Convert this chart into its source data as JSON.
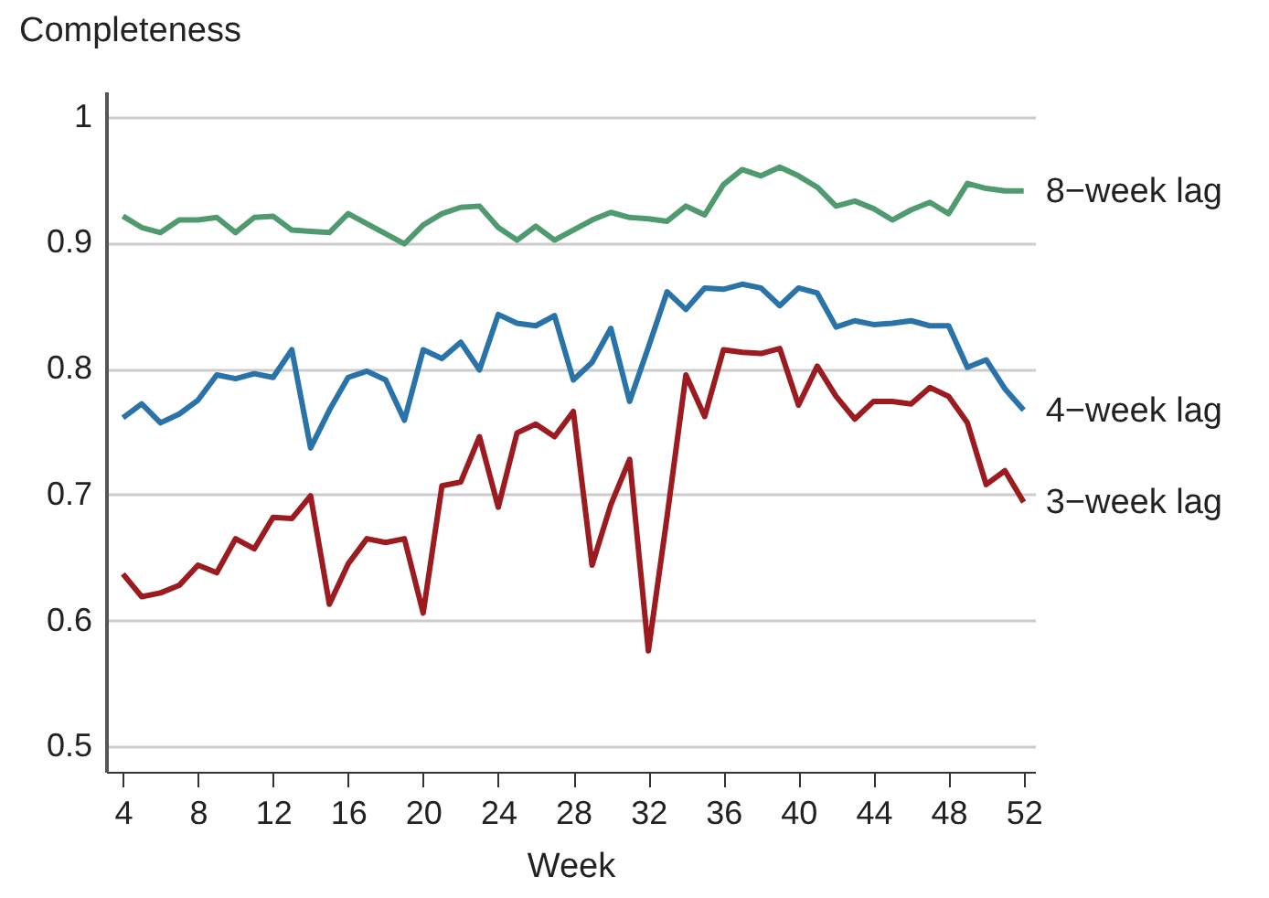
{
  "chart_data": {
    "type": "line",
    "xlabel": "Week",
    "ylabel": "Completeness",
    "x": [
      4,
      5,
      6,
      7,
      8,
      9,
      10,
      11,
      12,
      13,
      14,
      15,
      16,
      17,
      18,
      19,
      20,
      21,
      22,
      23,
      24,
      25,
      26,
      27,
      28,
      29,
      30,
      31,
      32,
      33,
      34,
      35,
      36,
      37,
      38,
      39,
      40,
      41,
      42,
      43,
      44,
      45,
      46,
      47,
      48,
      49,
      50,
      51,
      52
    ],
    "series": [
      {
        "name": "8−week lag",
        "color": "#4f9a6e",
        "values": [
          0.921,
          0.912,
          0.908,
          0.918,
          0.918,
          0.92,
          0.908,
          0.92,
          0.921,
          0.91,
          0.909,
          0.908,
          0.923,
          0.915,
          0.907,
          0.899,
          0.914,
          0.923,
          0.928,
          0.929,
          0.912,
          0.902,
          0.913,
          0.902,
          0.91,
          0.918,
          0.924,
          0.92,
          0.919,
          0.917,
          0.929,
          0.922,
          0.946,
          0.958,
          0.953,
          0.96,
          0.953,
          0.944,
          0.929,
          0.933,
          0.927,
          0.918,
          0.926,
          0.932,
          0.923,
          0.947,
          0.943,
          0.941,
          0.941
        ]
      },
      {
        "name": "4−week lag",
        "color": "#2a73a8",
        "values": [
          0.761,
          0.772,
          0.757,
          0.764,
          0.775,
          0.795,
          0.792,
          0.796,
          0.793,
          0.815,
          0.737,
          0.767,
          0.793,
          0.798,
          0.791,
          0.759,
          0.815,
          0.808,
          0.821,
          0.799,
          0.843,
          0.836,
          0.834,
          0.842,
          0.791,
          0.805,
          0.832,
          0.774,
          0.817,
          0.861,
          0.847,
          0.864,
          0.863,
          0.867,
          0.864,
          0.85,
          0.864,
          0.86,
          0.833,
          0.838,
          0.835,
          0.836,
          0.838,
          0.834,
          0.834,
          0.801,
          0.807,
          0.784,
          0.767
        ]
      },
      {
        "name": "3−week lag",
        "color": "#9b1b20",
        "values": [
          0.637,
          0.619,
          0.622,
          0.628,
          0.644,
          0.638,
          0.665,
          0.657,
          0.682,
          0.681,
          0.699,
          0.613,
          0.645,
          0.665,
          0.662,
          0.665,
          0.606,
          0.707,
          0.71,
          0.746,
          0.69,
          0.749,
          0.756,
          0.746,
          0.766,
          0.644,
          0.692,
          0.728,
          0.576,
          0.683,
          0.795,
          0.762,
          0.815,
          0.813,
          0.812,
          0.816,
          0.771,
          0.802,
          0.778,
          0.76,
          0.774,
          0.774,
          0.772,
          0.785,
          0.778,
          0.757,
          0.708,
          0.719,
          0.694
        ]
      }
    ],
    "xlim": [
      3.1,
      52.6
    ],
    "xticks": [
      4,
      8,
      12,
      16,
      20,
      24,
      28,
      32,
      36,
      40,
      44,
      48,
      52
    ],
    "ylim": [
      0.48,
      1.02
    ],
    "yticks": [
      0.5,
      0.6,
      0.7,
      0.8,
      0.9,
      1
    ],
    "grid": "y",
    "legend": false,
    "line_style": "solid",
    "marker": "none"
  }
}
